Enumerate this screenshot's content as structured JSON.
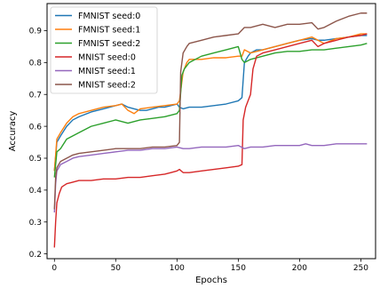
{
  "chart_data": {
    "type": "line",
    "xlabel": "Epochs",
    "ylabel": "Accuracy",
    "xlim": [
      -6,
      262
    ],
    "ylim": [
      0.185,
      0.985
    ],
    "xticks": [
      0,
      50,
      100,
      150,
      200,
      250
    ],
    "yticks": [
      0.2,
      0.3,
      0.4,
      0.5,
      0.6,
      0.7,
      0.8,
      0.9
    ],
    "legend_position": "top-left",
    "grid": false,
    "series": [
      {
        "name": "FMNIST seed:0",
        "color": "#1f77b4",
        "points": [
          [
            0,
            0.46
          ],
          [
            2,
            0.55
          ],
          [
            5,
            0.57
          ],
          [
            10,
            0.6
          ],
          [
            15,
            0.62
          ],
          [
            20,
            0.63
          ],
          [
            30,
            0.645
          ],
          [
            40,
            0.655
          ],
          [
            50,
            0.665
          ],
          [
            55,
            0.67
          ],
          [
            60,
            0.66
          ],
          [
            65,
            0.655
          ],
          [
            70,
            0.65
          ],
          [
            75,
            0.65
          ],
          [
            80,
            0.655
          ],
          [
            85,
            0.66
          ],
          [
            90,
            0.66
          ],
          [
            95,
            0.665
          ],
          [
            100,
            0.67
          ],
          [
            102,
            0.66
          ],
          [
            105,
            0.655
          ],
          [
            110,
            0.66
          ],
          [
            120,
            0.66
          ],
          [
            130,
            0.665
          ],
          [
            140,
            0.67
          ],
          [
            150,
            0.68
          ],
          [
            153,
            0.69
          ],
          [
            155,
            0.8
          ],
          [
            158,
            0.82
          ],
          [
            160,
            0.83
          ],
          [
            165,
            0.84
          ],
          [
            170,
            0.84
          ],
          [
            180,
            0.85
          ],
          [
            190,
            0.86
          ],
          [
            200,
            0.87
          ],
          [
            210,
            0.875
          ],
          [
            215,
            0.87
          ],
          [
            220,
            0.87
          ],
          [
            230,
            0.875
          ],
          [
            240,
            0.88
          ],
          [
            250,
            0.885
          ],
          [
            255,
            0.885
          ]
        ]
      },
      {
        "name": "FMNIST seed:1",
        "color": "#ff7f0e",
        "points": [
          [
            0,
            0.46
          ],
          [
            2,
            0.56
          ],
          [
            5,
            0.58
          ],
          [
            10,
            0.61
          ],
          [
            15,
            0.63
          ],
          [
            20,
            0.64
          ],
          [
            30,
            0.65
          ],
          [
            40,
            0.66
          ],
          [
            50,
            0.665
          ],
          [
            55,
            0.67
          ],
          [
            60,
            0.65
          ],
          [
            65,
            0.64
          ],
          [
            70,
            0.655
          ],
          [
            80,
            0.66
          ],
          [
            90,
            0.665
          ],
          [
            100,
            0.67
          ],
          [
            102,
            0.68
          ],
          [
            105,
            0.77
          ],
          [
            108,
            0.8
          ],
          [
            110,
            0.81
          ],
          [
            120,
            0.81
          ],
          [
            130,
            0.815
          ],
          [
            140,
            0.815
          ],
          [
            150,
            0.82
          ],
          [
            153,
            0.82
          ],
          [
            155,
            0.84
          ],
          [
            160,
            0.83
          ],
          [
            170,
            0.84
          ],
          [
            180,
            0.85
          ],
          [
            190,
            0.86
          ],
          [
            200,
            0.87
          ],
          [
            210,
            0.88
          ],
          [
            215,
            0.87
          ],
          [
            220,
            0.86
          ],
          [
            230,
            0.875
          ],
          [
            240,
            0.88
          ],
          [
            250,
            0.89
          ],
          [
            255,
            0.89
          ]
        ]
      },
      {
        "name": "FMNIST seed:2",
        "color": "#2ca02c",
        "points": [
          [
            0,
            0.44
          ],
          [
            2,
            0.52
          ],
          [
            5,
            0.53
          ],
          [
            10,
            0.56
          ],
          [
            15,
            0.57
          ],
          [
            20,
            0.58
          ],
          [
            30,
            0.6
          ],
          [
            40,
            0.61
          ],
          [
            50,
            0.62
          ],
          [
            60,
            0.61
          ],
          [
            70,
            0.62
          ],
          [
            80,
            0.625
          ],
          [
            90,
            0.63
          ],
          [
            100,
            0.64
          ],
          [
            102,
            0.65
          ],
          [
            104,
            0.76
          ],
          [
            106,
            0.78
          ],
          [
            110,
            0.8
          ],
          [
            120,
            0.82
          ],
          [
            130,
            0.83
          ],
          [
            140,
            0.84
          ],
          [
            150,
            0.85
          ],
          [
            153,
            0.81
          ],
          [
            155,
            0.8
          ],
          [
            160,
            0.81
          ],
          [
            170,
            0.82
          ],
          [
            180,
            0.83
          ],
          [
            190,
            0.835
          ],
          [
            200,
            0.835
          ],
          [
            210,
            0.84
          ],
          [
            220,
            0.84
          ],
          [
            230,
            0.845
          ],
          [
            240,
            0.85
          ],
          [
            250,
            0.855
          ],
          [
            255,
            0.86
          ]
        ]
      },
      {
        "name": "MNIST seed:0",
        "color": "#d62728",
        "points": [
          [
            0,
            0.22
          ],
          [
            1,
            0.3
          ],
          [
            2,
            0.36
          ],
          [
            4,
            0.39
          ],
          [
            6,
            0.41
          ],
          [
            10,
            0.42
          ],
          [
            15,
            0.425
          ],
          [
            20,
            0.43
          ],
          [
            30,
            0.43
          ],
          [
            40,
            0.435
          ],
          [
            50,
            0.435
          ],
          [
            60,
            0.44
          ],
          [
            70,
            0.44
          ],
          [
            80,
            0.445
          ],
          [
            90,
            0.45
          ],
          [
            95,
            0.455
          ],
          [
            100,
            0.46
          ],
          [
            102,
            0.465
          ],
          [
            105,
            0.455
          ],
          [
            110,
            0.455
          ],
          [
            120,
            0.46
          ],
          [
            130,
            0.465
          ],
          [
            140,
            0.47
          ],
          [
            150,
            0.475
          ],
          [
            153,
            0.48
          ],
          [
            154,
            0.62
          ],
          [
            156,
            0.66
          ],
          [
            158,
            0.68
          ],
          [
            160,
            0.7
          ],
          [
            162,
            0.78
          ],
          [
            165,
            0.82
          ],
          [
            170,
            0.83
          ],
          [
            180,
            0.84
          ],
          [
            190,
            0.85
          ],
          [
            200,
            0.86
          ],
          [
            210,
            0.87
          ],
          [
            215,
            0.85
          ],
          [
            220,
            0.86
          ],
          [
            230,
            0.87
          ],
          [
            240,
            0.88
          ],
          [
            250,
            0.885
          ],
          [
            255,
            0.89
          ]
        ]
      },
      {
        "name": "MNIST seed:1",
        "color": "#9467bd",
        "points": [
          [
            0,
            0.33
          ],
          [
            1,
            0.42
          ],
          [
            2,
            0.46
          ],
          [
            5,
            0.48
          ],
          [
            10,
            0.49
          ],
          [
            15,
            0.5
          ],
          [
            20,
            0.505
          ],
          [
            30,
            0.51
          ],
          [
            40,
            0.515
          ],
          [
            50,
            0.52
          ],
          [
            60,
            0.525
          ],
          [
            70,
            0.525
          ],
          [
            80,
            0.53
          ],
          [
            90,
            0.53
          ],
          [
            100,
            0.535
          ],
          [
            105,
            0.53
          ],
          [
            110,
            0.53
          ],
          [
            120,
            0.535
          ],
          [
            130,
            0.535
          ],
          [
            140,
            0.535
          ],
          [
            150,
            0.54
          ],
          [
            155,
            0.53
          ],
          [
            160,
            0.535
          ],
          [
            170,
            0.535
          ],
          [
            180,
            0.54
          ],
          [
            190,
            0.54
          ],
          [
            200,
            0.54
          ],
          [
            205,
            0.545
          ],
          [
            210,
            0.54
          ],
          [
            220,
            0.54
          ],
          [
            230,
            0.545
          ],
          [
            240,
            0.545
          ],
          [
            250,
            0.545
          ],
          [
            255,
            0.545
          ]
        ]
      },
      {
        "name": "MNIST seed:2",
        "color": "#8c564b",
        "points": [
          [
            0,
            0.34
          ],
          [
            1,
            0.44
          ],
          [
            2,
            0.47
          ],
          [
            5,
            0.49
          ],
          [
            10,
            0.5
          ],
          [
            15,
            0.51
          ],
          [
            20,
            0.515
          ],
          [
            30,
            0.52
          ],
          [
            40,
            0.525
          ],
          [
            50,
            0.53
          ],
          [
            60,
            0.53
          ],
          [
            70,
            0.53
          ],
          [
            80,
            0.535
          ],
          [
            90,
            0.535
          ],
          [
            100,
            0.54
          ],
          [
            102,
            0.55
          ],
          [
            103,
            0.77
          ],
          [
            105,
            0.83
          ],
          [
            108,
            0.85
          ],
          [
            110,
            0.86
          ],
          [
            120,
            0.87
          ],
          [
            130,
            0.88
          ],
          [
            140,
            0.885
          ],
          [
            150,
            0.89
          ],
          [
            155,
            0.91
          ],
          [
            160,
            0.91
          ],
          [
            170,
            0.92
          ],
          [
            180,
            0.91
          ],
          [
            190,
            0.92
          ],
          [
            200,
            0.92
          ],
          [
            210,
            0.925
          ],
          [
            215,
            0.905
          ],
          [
            220,
            0.91
          ],
          [
            230,
            0.93
          ],
          [
            240,
            0.945
          ],
          [
            250,
            0.955
          ],
          [
            255,
            0.955
          ]
        ]
      }
    ]
  }
}
